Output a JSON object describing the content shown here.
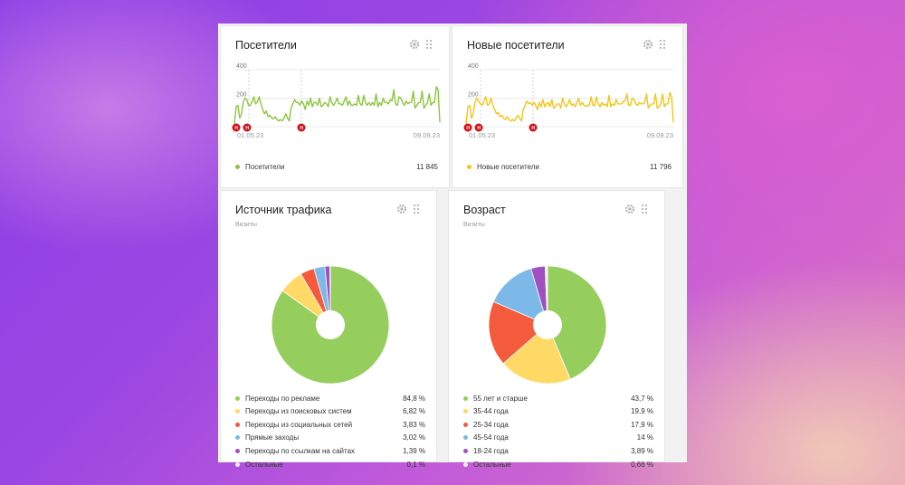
{
  "cards": {
    "visitors": {
      "title": "Посетители",
      "y_ticks": [
        "400",
        "200"
      ],
      "x_start": "01.05.23",
      "x_end": "09.09.23",
      "marker_letter": "Н",
      "legend_label": "Посетители",
      "legend_value": "11 845",
      "color": "#8cc63f"
    },
    "new_visitors": {
      "title": "Новые посетители",
      "y_ticks": [
        "400",
        "200"
      ],
      "x_start": "01.05.23",
      "x_end": "09.09.23",
      "marker_letter": "Н",
      "legend_label": "Новые посетители",
      "legend_value": "11 796",
      "color": "#f5c518"
    },
    "traffic": {
      "title": "Источник трафика",
      "subtitle": "Визиты",
      "items": [
        {
          "label": "Переходы по рекламе",
          "value": "84,8 %",
          "color": "#96ce5e"
        },
        {
          "label": "Переходы из поисковых систем",
          "value": "6,82 %",
          "color": "#ffd966"
        },
        {
          "label": "Переходы из социальных сетей",
          "value": "3,83 %",
          "color": "#f45b3c"
        },
        {
          "label": "Прямые заходы",
          "value": "3,02 %",
          "color": "#7db9e8"
        },
        {
          "label": "Переходы по ссылкам на сайтах",
          "value": "1,39 %",
          "color": "#a050c0"
        },
        {
          "label": "Остальные",
          "value": "0,1 %",
          "color": "#f0f0f0"
        }
      ]
    },
    "age": {
      "title": "Возраст",
      "subtitle": "Визиты",
      "items": [
        {
          "label": "55 лет и старше",
          "value": "43,7 %",
          "color": "#96ce5e"
        },
        {
          "label": "35-44 года",
          "value": "19,9 %",
          "color": "#ffd966"
        },
        {
          "label": "25-34 года",
          "value": "17,9 %",
          "color": "#f45b3c"
        },
        {
          "label": "45-54 года",
          "value": "14 %",
          "color": "#7db9e8"
        },
        {
          "label": "18-24 года",
          "value": "3,89 %",
          "color": "#a050c0"
        },
        {
          "label": "Остальные",
          "value": "0,66 %",
          "color": "#f0f0f0"
        }
      ]
    }
  },
  "chart_data": [
    {
      "type": "line",
      "title": "Посетители",
      "ylim": [
        0,
        400
      ],
      "x_range": [
        "01.05.23",
        "09.09.23"
      ],
      "series": [
        {
          "name": "Посетители",
          "values": [
            20,
            140,
            150,
            60,
            90,
            170,
            200,
            190,
            150,
            150,
            175,
            210,
            160,
            175,
            210,
            160,
            120,
            90,
            110,
            70,
            80,
            60,
            55,
            70,
            50,
            40,
            50,
            40,
            60,
            90,
            60,
            40,
            130,
            160,
            190,
            170,
            170,
            150,
            180,
            160,
            120,
            180,
            150,
            200,
            140,
            170,
            170,
            150,
            200,
            140,
            150,
            170,
            160,
            140,
            210,
            170,
            150,
            170,
            200,
            160,
            160,
            150,
            180,
            210,
            150,
            180,
            150,
            150,
            160,
            150,
            220,
            160,
            150,
            220,
            170,
            150,
            170,
            150,
            170,
            150,
            230,
            140,
            170,
            150,
            200,
            170,
            170,
            160,
            190,
            180,
            260,
            160,
            150,
            210,
            200,
            170,
            150,
            180,
            160,
            170,
            170,
            250,
            130,
            150,
            170,
            170,
            250,
            130,
            150,
            170,
            230,
            150,
            170,
            170,
            280,
            260,
            30
          ]
        }
      ]
    },
    {
      "type": "line",
      "title": "Новые посетители",
      "ylim": [
        0,
        400
      ],
      "x_range": [
        "01.05.23",
        "09.09.23"
      ],
      "series": [
        {
          "name": "Новые посетители",
          "values": [
            20,
            140,
            150,
            60,
            90,
            170,
            200,
            180,
            160,
            150,
            180,
            210,
            150,
            160,
            200,
            150,
            120,
            90,
            100,
            70,
            80,
            60,
            50,
            70,
            50,
            40,
            50,
            40,
            60,
            80,
            60,
            40,
            120,
            150,
            180,
            160,
            170,
            150,
            170,
            150,
            120,
            170,
            140,
            190,
            140,
            160,
            170,
            140,
            190,
            130,
            140,
            160,
            160,
            130,
            200,
            160,
            140,
            160,
            190,
            150,
            160,
            140,
            170,
            200,
            150,
            170,
            150,
            140,
            150,
            150,
            210,
            150,
            150,
            210,
            160,
            140,
            170,
            150,
            160,
            140,
            220,
            140,
            160,
            150,
            190,
            160,
            160,
            160,
            180,
            180,
            230,
            150,
            150,
            200,
            190,
            160,
            150,
            170,
            160,
            160,
            170,
            230,
            130,
            150,
            160,
            160,
            230,
            130,
            140,
            160,
            230,
            140,
            160,
            160,
            240,
            210,
            30
          ]
        }
      ]
    },
    {
      "type": "pie",
      "title": "Источник трафика",
      "categories": [
        "Переходы по рекламе",
        "Переходы из поисковых систем",
        "Переходы из социальных сетей",
        "Прямые заходы",
        "Переходы по ссылкам на сайтах",
        "Остальные"
      ],
      "values": [
        84.8,
        6.82,
        3.83,
        3.02,
        1.39,
        0.1
      ]
    },
    {
      "type": "pie",
      "title": "Возраст",
      "categories": [
        "55 лет и старше",
        "35-44 года",
        "25-34 года",
        "45-54 года",
        "18-24 года",
        "Остальные"
      ],
      "values": [
        43.7,
        19.9,
        17.9,
        14,
        3.89,
        0.66
      ]
    }
  ]
}
